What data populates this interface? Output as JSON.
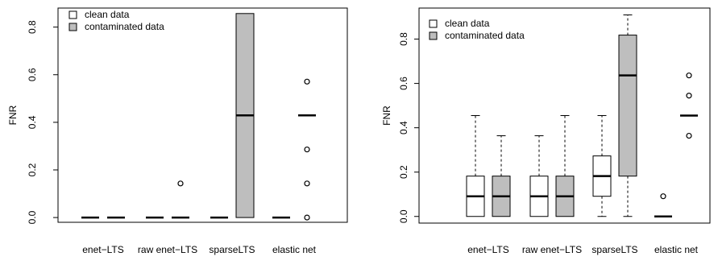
{
  "colors": {
    "clean": "#ffffff",
    "contaminated": "#bebebe",
    "stroke": "#000000"
  },
  "legend": {
    "position": "top-left",
    "entries": [
      {
        "label": "clean data",
        "color": "#ffffff"
      },
      {
        "label": "contaminated data",
        "color": "#bebebe"
      }
    ]
  },
  "chart_data": [
    {
      "type": "boxplot",
      "ylabel": "FNR",
      "ylim": [
        -0.02,
        0.88
      ],
      "yticks": [
        0.0,
        0.2,
        0.4,
        0.6,
        0.8
      ],
      "ytick_labels": [
        "0.0",
        "0.2",
        "0.4",
        "0.6",
        "0.8"
      ],
      "categories": [
        "enet−LTS",
        "raw enet−LTS",
        "sparseLTS",
        "elastic net"
      ],
      "boxes": [
        {
          "category": 0,
          "series": "clean data",
          "whisker_low": 0,
          "q1": 0,
          "median": 0,
          "q3": 0,
          "whisker_high": 0,
          "outliers": []
        },
        {
          "category": 0,
          "series": "contaminated data",
          "whisker_low": 0,
          "q1": 0,
          "median": 0,
          "q3": 0,
          "whisker_high": 0,
          "outliers": []
        },
        {
          "category": 1,
          "series": "clean data",
          "whisker_low": 0,
          "q1": 0,
          "median": 0,
          "q3": 0,
          "whisker_high": 0,
          "outliers": []
        },
        {
          "category": 1,
          "series": "contaminated data",
          "whisker_low": 0,
          "q1": 0,
          "median": 0,
          "q3": 0,
          "whisker_high": 0,
          "outliers": [
            0.143
          ]
        },
        {
          "category": 2,
          "series": "clean data",
          "whisker_low": 0,
          "q1": 0,
          "median": 0,
          "q3": 0,
          "whisker_high": 0,
          "outliers": []
        },
        {
          "category": 2,
          "series": "contaminated data",
          "whisker_low": 0,
          "q1": 0,
          "median": 0.429,
          "q3": 0.857,
          "whisker_high": 0.857,
          "outliers": []
        },
        {
          "category": 3,
          "series": "clean data",
          "whisker_low": 0,
          "q1": 0,
          "median": 0,
          "q3": 0,
          "whisker_high": 0,
          "outliers": []
        },
        {
          "category": 3,
          "series": "contaminated data",
          "whisker_low": 0.429,
          "q1": 0.429,
          "median": 0.429,
          "q3": 0.429,
          "whisker_high": 0.429,
          "outliers": [
            0,
            0.143,
            0.286,
            0.571
          ]
        }
      ]
    },
    {
      "type": "boxplot",
      "ylabel": "FNR",
      "ylim": [
        -0.03,
        0.94
      ],
      "yticks": [
        0.0,
        0.2,
        0.4,
        0.6,
        0.8
      ],
      "ytick_labels": [
        "0.0",
        "0.2",
        "0.4",
        "0.6",
        "0.8"
      ],
      "categories": [
        "enet−LTS",
        "raw enet−LTS",
        "sparseLTS",
        "elastic net"
      ],
      "boxes": [
        {
          "category": 0,
          "series": "clean data",
          "whisker_low": 0,
          "q1": 0,
          "median": 0.091,
          "q3": 0.182,
          "whisker_high": 0.455,
          "outliers": []
        },
        {
          "category": 0,
          "series": "contaminated data",
          "whisker_low": 0,
          "q1": 0,
          "median": 0.091,
          "q3": 0.182,
          "whisker_high": 0.364,
          "outliers": []
        },
        {
          "category": 1,
          "series": "clean data",
          "whisker_low": 0,
          "q1": 0,
          "median": 0.091,
          "q3": 0.182,
          "whisker_high": 0.364,
          "outliers": []
        },
        {
          "category": 1,
          "series": "contaminated data",
          "whisker_low": 0,
          "q1": 0,
          "median": 0.091,
          "q3": 0.182,
          "whisker_high": 0.455,
          "outliers": []
        },
        {
          "category": 2,
          "series": "clean data",
          "whisker_low": 0,
          "q1": 0.091,
          "median": 0.182,
          "q3": 0.273,
          "whisker_high": 0.455,
          "outliers": []
        },
        {
          "category": 2,
          "series": "contaminated data",
          "whisker_low": 0,
          "q1": 0.182,
          "median": 0.636,
          "q3": 0.818,
          "whisker_high": 0.909,
          "outliers": []
        },
        {
          "category": 3,
          "series": "clean data",
          "whisker_low": 0,
          "q1": 0,
          "median": 0,
          "q3": 0,
          "whisker_high": 0,
          "outliers": [
            0.091
          ]
        },
        {
          "category": 3,
          "series": "contaminated data",
          "whisker_low": 0.455,
          "q1": 0.455,
          "median": 0.455,
          "q3": 0.455,
          "whisker_high": 0.455,
          "outliers": [
            0.364,
            0.545,
            0.636
          ]
        }
      ]
    }
  ]
}
